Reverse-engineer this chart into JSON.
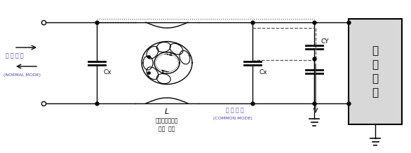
{
  "fig_width": 5.86,
  "fig_height": 2.19,
  "dpi": 100,
  "background": "#ffffff",
  "text_color": "#000000",
  "blue_color": "#4444aa",
  "gray_box_color": "#d8d8d8",
  "line_color": "#000000",
  "labels": {
    "normal_mode_kr": "노 말 모 드",
    "normal_mode_en": "(NORMAL MODE)",
    "common_mode_kr": "코 면 모 드",
    "common_mode_en": "(COMMON MODE)",
    "toroid_label": "L",
    "toroid_sub1": "노말모드전류에",
    "toroid_sub2": "의한  자속",
    "cx_left": "Cx",
    "cx_right": "Cx",
    "cy_label": "CY",
    "device_text": "전\n자\n기\n기"
  }
}
